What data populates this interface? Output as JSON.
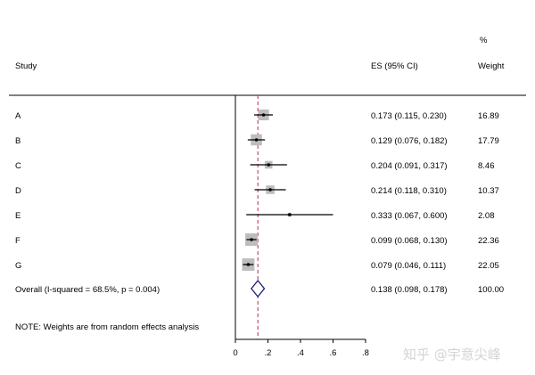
{
  "chart_data": {
    "type": "forest",
    "headers": {
      "study": "Study",
      "es": "ES (95% CI)",
      "weight_pct": "%",
      "weight": "Weight"
    },
    "studies": [
      {
        "label": "A",
        "es": 0.173,
        "lo": 0.115,
        "hi": 0.23,
        "ci_text": "0.173 (0.115, 0.230)",
        "weight": 16.89,
        "weight_text": "16.89"
      },
      {
        "label": "B",
        "es": 0.129,
        "lo": 0.076,
        "hi": 0.182,
        "ci_text": "0.129 (0.076, 0.182)",
        "weight": 17.79,
        "weight_text": "17.79"
      },
      {
        "label": "C",
        "es": 0.204,
        "lo": 0.091,
        "hi": 0.317,
        "ci_text": "0.204 (0.091, 0.317)",
        "weight": 8.46,
        "weight_text": "8.46"
      },
      {
        "label": "D",
        "es": 0.214,
        "lo": 0.118,
        "hi": 0.31,
        "ci_text": "0.214 (0.118, 0.310)",
        "weight": 10.37,
        "weight_text": "10.37"
      },
      {
        "label": "E",
        "es": 0.333,
        "lo": 0.067,
        "hi": 0.6,
        "ci_text": "0.333 (0.067, 0.600)",
        "weight": 2.08,
        "weight_text": "2.08"
      },
      {
        "label": "F",
        "es": 0.099,
        "lo": 0.068,
        "hi": 0.13,
        "ci_text": "0.099 (0.068, 0.130)",
        "weight": 22.36,
        "weight_text": "22.36"
      },
      {
        "label": "G",
        "es": 0.079,
        "lo": 0.046,
        "hi": 0.111,
        "ci_text": "0.079 (0.046, 0.111)",
        "weight": 22.05,
        "weight_text": "22.05"
      }
    ],
    "overall": {
      "label": "Overall  (I-squared = 68.5%, p = 0.004)",
      "es": 0.138,
      "lo": 0.098,
      "hi": 0.178,
      "ci_text": "0.138 (0.098, 0.178)",
      "weight_text": "100.00"
    },
    "note": "NOTE: Weights are from random effects analysis",
    "x_ticks": [
      0,
      0.2,
      0.4,
      0.6,
      0.8
    ],
    "x_tick_labels": [
      "0",
      ".2",
      ".4",
      ".6",
      ".8"
    ],
    "xlim": [
      0,
      0.8
    ],
    "null_line": 0,
    "colors": {
      "box": "#bdbdbd",
      "ci": "#000000",
      "overall_diamond": "#1a1a6e",
      "overall_line": "#b03050"
    }
  },
  "watermark": "知乎 @宇意尖峰"
}
